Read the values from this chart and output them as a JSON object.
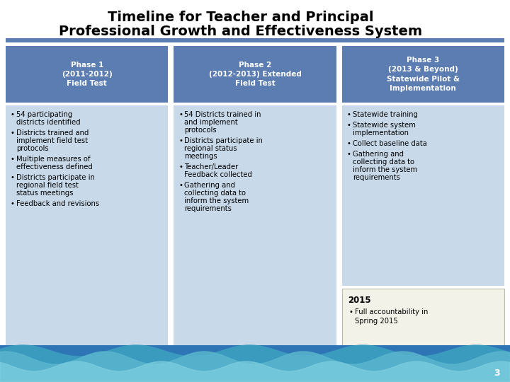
{
  "title_line1": "Timeline for Teacher and Principal",
  "title_line2": "Professional Growth and Effectiveness System",
  "bg_color": "#ffffff",
  "header_blue": "#5b7db1",
  "light_blue": "#c8d9ea",
  "phase_headers": [
    "Phase 1\n(2011-2012)\nField Test",
    "Phase 2\n(2012-2013) Extended\nField Test",
    "Phase 3\n(2013 & Beyond)\nStatewide Pilot &\nImplementation"
  ],
  "phase1_bullets": [
    "54 participating\ndistricts identified",
    "Districts trained and\nimplement field test\nprotocols",
    "Multiple measures of\neffectiveness defined",
    "Districts participate in\nregional field test\nstatus meetings",
    "Feedback and revisions"
  ],
  "phase2_bullets": [
    "54 Districts trained in\nand implement\nprotocols",
    "Districts participate in\nregional status\nmeetings",
    "Teacher/Leader\nFeedback collected",
    "Gathering and\ncollecting data to\ninform the system\nrequirements"
  ],
  "phase3_bullets": [
    "Statewide training",
    "Statewide system\nimplementation",
    "Collect baseline data",
    "Gathering and\ncollecting data to\ninform the system\nrequirements"
  ],
  "phase2015_title": "2015",
  "phase2015_bullet": "Full accountability in\nSpring 2015",
  "footer_blue": "#2e75b6",
  "footer_cyan": "#4ab8d4",
  "footer_lightcyan": "#7ecfe0",
  "page_number": "3"
}
